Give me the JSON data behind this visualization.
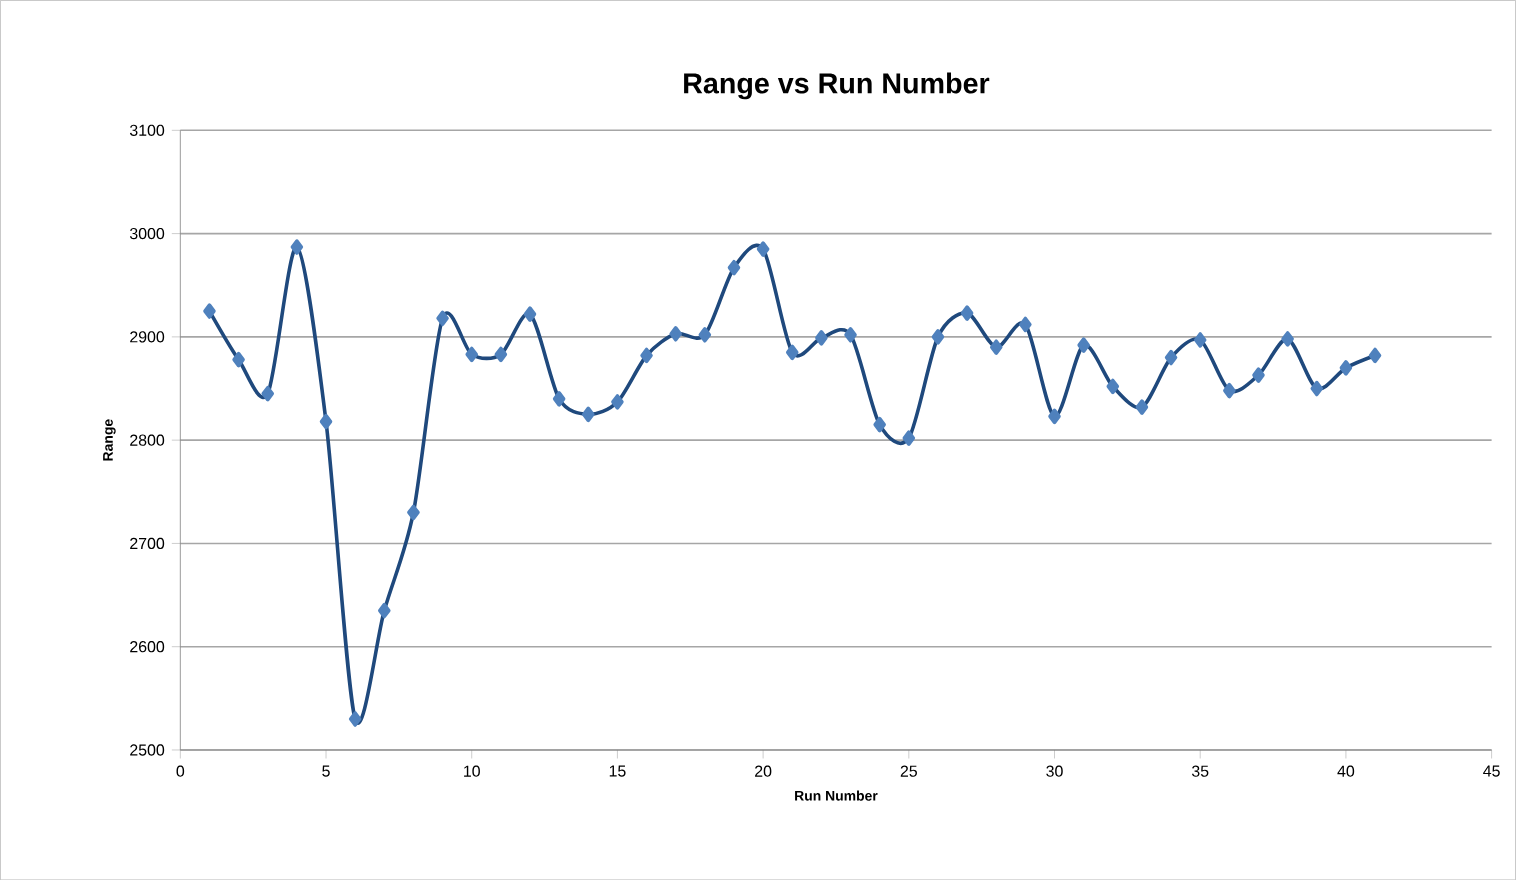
{
  "chart_data": {
    "type": "line",
    "title": "Range vs Run Number",
    "xlabel": "Run Number",
    "ylabel": "Range",
    "x": [
      1,
      2,
      3,
      4,
      5,
      6,
      7,
      8,
      9,
      10,
      11,
      12,
      13,
      14,
      15,
      16,
      17,
      18,
      19,
      20,
      21,
      22,
      23,
      24,
      25,
      26,
      27,
      28,
      29,
      30,
      31,
      32,
      33,
      34,
      35,
      36,
      37,
      38,
      39,
      40,
      41
    ],
    "series": [
      {
        "color": "#1f497d",
        "values": [
          2925,
          2878,
          2845,
          2987,
          2818,
          2530,
          2635,
          2730,
          2918,
          2883,
          2883,
          2922,
          2840,
          2825,
          2837,
          2882,
          2903,
          2902,
          2967,
          2985,
          2885,
          2899,
          2902,
          2815,
          2802,
          2900,
          2923,
          2890,
          2912,
          2823,
          2892,
          2852,
          2832,
          2880,
          2897,
          2848,
          2863,
          2898,
          2850,
          2870,
          2882
        ]
      }
    ],
    "xlim": [
      0,
      45
    ],
    "xticks": [
      0,
      5,
      10,
      15,
      20,
      25,
      30,
      35,
      40,
      45
    ],
    "ylim": [
      2500,
      3100
    ],
    "yticks": [
      2500,
      2600,
      2700,
      2800,
      2900,
      3000,
      3100
    ],
    "grid": "y",
    "marker": "diamond",
    "line_style": "solid"
  }
}
